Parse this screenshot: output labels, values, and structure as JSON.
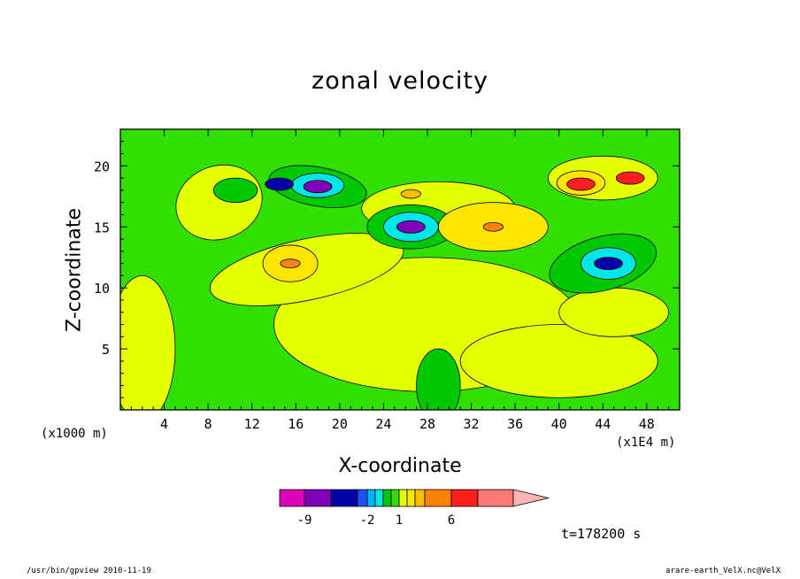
{
  "chart_data": {
    "type": "heatmap",
    "title": "zonal velocity",
    "xlabel": "X-coordinate",
    "ylabel": "Z-coordinate",
    "x_unit": "(x1E4 m)",
    "y_unit": "(x1000 m)",
    "xlim": [
      0,
      51
    ],
    "ylim": [
      0,
      23
    ],
    "x_ticks": [
      4,
      8,
      12,
      16,
      20,
      24,
      28,
      32,
      36,
      40,
      44,
      48
    ],
    "y_ticks": [
      5,
      10,
      15,
      20
    ],
    "colorbar": {
      "levels": [
        -12,
        -9,
        -6,
        -3,
        -2,
        -1,
        -0.5,
        0.5,
        1,
        1.5,
        2,
        3,
        6,
        9,
        12
      ],
      "labels": [
        {
          "level": -9,
          "text": "-9"
        },
        {
          "level": -2,
          "text": "-2"
        },
        {
          "level": 1,
          "text": "1"
        },
        {
          "level": 6,
          "text": "6"
        }
      ],
      "colors": [
        "#e000b8",
        "#8000b8",
        "#0000a8",
        "#1e50ff",
        "#00b4ff",
        "#00e6e6",
        "#00c800",
        "#32e000",
        "#e6ff00",
        "#ffe600",
        "#ffbe00",
        "#ff8200",
        "#ff1e1e",
        "#ff7878",
        "#ffb4b4"
      ]
    },
    "features": [
      {
        "x": 18,
        "z": 18.3,
        "value": -9,
        "note": "negative core upper-left"
      },
      {
        "x": 14.5,
        "z": 18.5,
        "value": -6
      },
      {
        "x": 26.5,
        "z": 15,
        "value": -9,
        "note": "negative core centre"
      },
      {
        "x": 44.5,
        "z": 12,
        "value": -6
      },
      {
        "x": 15.5,
        "z": 12,
        "value": 3
      },
      {
        "x": 34,
        "z": 15,
        "value": 3
      },
      {
        "x": 42,
        "z": 18.5,
        "value": 6
      },
      {
        "x": 46.5,
        "z": 19,
        "value": 6
      },
      {
        "x": 26.5,
        "z": 17.7,
        "value": 2
      }
    ]
  },
  "annotation": {
    "time": "t=178200 s"
  },
  "footer": {
    "left": "/usr/bin/gpview   2010-11-19",
    "right": "arare-earth_VelX.nc@VelX"
  }
}
